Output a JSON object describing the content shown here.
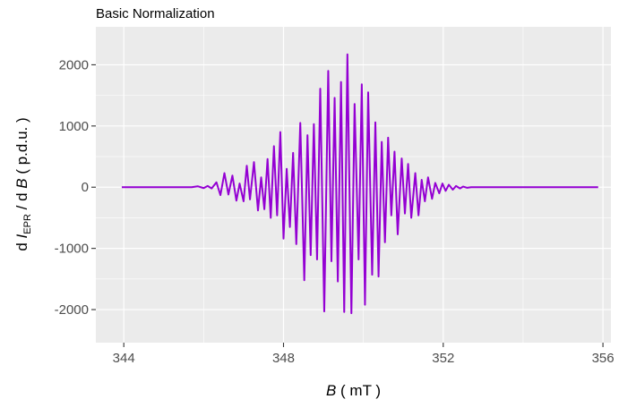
{
  "chart_data": {
    "type": "line",
    "title": "Basic Normalization",
    "xlabel": {
      "italic": "B",
      "rest": " ( mT )"
    },
    "ylabel": {
      "d1": "d ",
      "I": "I",
      "sub": "EPR",
      "mid": " / d ",
      "B": "B",
      "rest": "  ( p.d.u. )"
    },
    "xlim": [
      343.3,
      356.2
    ],
    "ylim": [
      -2540,
      2620
    ],
    "x_ticks": [
      344,
      348,
      352,
      356
    ],
    "x_tick_labels": [
      "344",
      "348",
      "352",
      "356"
    ],
    "y_ticks": [
      2000,
      1000,
      0,
      -1000,
      -2000
    ],
    "y_tick_labels": [
      "2000",
      "1000",
      "0",
      "-1000",
      "-2000"
    ],
    "grid": true,
    "series": [
      {
        "color": "#9400D3",
        "x": [
          343.95,
          345.7,
          345.85,
          346.0,
          346.1,
          346.2,
          346.32,
          346.42,
          346.52,
          346.62,
          346.72,
          346.82,
          346.9,
          347.0,
          347.08,
          347.16,
          347.26,
          347.36,
          347.44,
          347.52,
          347.6,
          347.68,
          347.76,
          347.84,
          347.92,
          348.0,
          348.08,
          348.16,
          348.24,
          348.32,
          348.42,
          348.52,
          348.6,
          348.68,
          348.76,
          348.84,
          348.92,
          349.02,
          349.12,
          349.2,
          349.28,
          349.36,
          349.44,
          349.52,
          349.6,
          349.7,
          349.78,
          349.88,
          349.96,
          350.04,
          350.12,
          350.22,
          350.3,
          350.38,
          350.46,
          350.54,
          350.62,
          350.7,
          350.78,
          350.86,
          350.96,
          351.04,
          351.12,
          351.2,
          351.3,
          351.38,
          351.46,
          351.54,
          351.62,
          351.72,
          351.8,
          351.9,
          351.98,
          352.06,
          352.14,
          352.24,
          352.32,
          352.42,
          352.5,
          352.6,
          352.7,
          352.78,
          352.88,
          352.98,
          353.06,
          353.16,
          353.26,
          353.36,
          353.46,
          353.56,
          353.66,
          353.78,
          353.9,
          354.05,
          354.2,
          354.4,
          355.88
        ],
        "y": [
          0,
          0,
          15,
          -15,
          20,
          -20,
          80,
          -130,
          230,
          -120,
          190,
          -220,
          60,
          -230,
          350,
          -200,
          410,
          -380,
          160,
          -360,
          460,
          -500,
          670,
          -460,
          900,
          -840,
          300,
          -650,
          560,
          -930,
          1050,
          -1520,
          850,
          -1110,
          1030,
          -1180,
          1610,
          -2030,
          1900,
          -1210,
          1460,
          -1540,
          1720,
          -2040,
          2170,
          -2060,
          1360,
          -1180,
          1680,
          -1920,
          1550,
          -1430,
          1060,
          -1460,
          740,
          -900,
          810,
          -460,
          580,
          -770,
          470,
          -430,
          380,
          -500,
          230,
          -460,
          120,
          -230,
          160,
          -190,
          70,
          -100,
          60,
          -60,
          40,
          -40,
          20,
          -20,
          10,
          -10,
          0,
          0,
          0,
          0,
          0,
          0,
          0,
          0,
          0,
          0,
          0,
          0,
          0,
          0,
          0,
          0,
          0
        ]
      }
    ]
  }
}
